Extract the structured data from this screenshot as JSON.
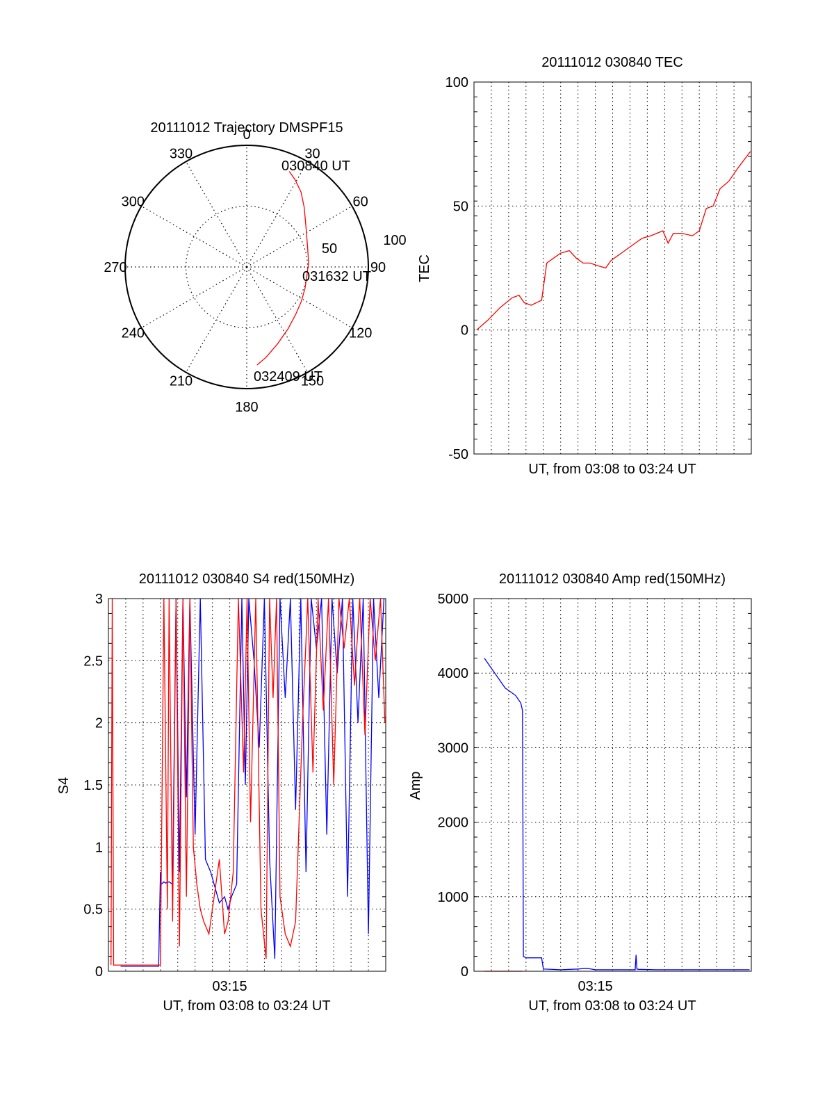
{
  "chart_data": [
    {
      "type": "polar",
      "title": "20111012 Trajectory DMSPF15",
      "azimuth_labels": [
        "0",
        "30",
        "60",
        "90",
        "120",
        "150",
        "180",
        "210",
        "240",
        "270",
        "300",
        "330"
      ],
      "radial_labels": [
        "50",
        "100"
      ],
      "r_max": 100,
      "series": [
        {
          "color": "#ff0000",
          "points": [
            [
              24,
              86
            ],
            [
              29,
              82
            ],
            [
              36,
              76
            ],
            [
              44,
              68
            ],
            [
              54,
              60
            ],
            [
              64,
              55
            ],
            [
              75,
              52
            ],
            [
              86,
              51
            ],
            [
              98,
              50
            ],
            [
              110,
              51
            ],
            [
              122,
              53
            ],
            [
              134,
              56
            ],
            [
              146,
              61
            ],
            [
              158,
              68
            ],
            [
              168,
              76
            ],
            [
              174,
              81
            ]
          ]
        }
      ],
      "annotations": [
        {
          "text": "030840 UT"
        },
        {
          "text": "031632 UT"
        },
        {
          "text": "032409 UT"
        }
      ]
    },
    {
      "type": "line",
      "title": "20111012 030840 TEC",
      "xlabel": "UT, from 03:08 to 03:24 UT",
      "ylabel": "TEC",
      "xlim": [
        0,
        16
      ],
      "ylim": [
        -50,
        100
      ],
      "yticks": [
        -50,
        0,
        50,
        100
      ],
      "xtick_labels": [],
      "grid": true,
      "series": [
        {
          "color": "#ff0000",
          "x": [
            0.15,
            0.8,
            1.5,
            2.2,
            2.6,
            2.9,
            3.3,
            3.6,
            3.9,
            4.2,
            4.6,
            5.0,
            5.5,
            5.9,
            6.3,
            6.7,
            7.1,
            7.6,
            7.9,
            8.5,
            9.1,
            9.7,
            10.2,
            10.9,
            11.2,
            11.5,
            12.0,
            12.6,
            13.0,
            13.4,
            13.8,
            14.2,
            14.7,
            15.3,
            15.95
          ],
          "y": [
            0,
            4,
            9,
            13,
            14,
            11,
            10,
            11,
            12,
            27,
            29,
            31,
            32,
            29,
            27,
            27,
            26,
            25,
            28,
            31,
            34,
            37,
            38,
            40,
            35,
            39,
            39,
            38,
            40,
            49,
            50,
            57,
            60,
            66,
            72
          ]
        }
      ]
    },
    {
      "type": "line",
      "title": "20111012 030840 S4 red(150MHz)",
      "xlabel": "UT, from 03:08 to 03:24 UT",
      "ylabel": "S4",
      "xlim": [
        0,
        16
      ],
      "ylim": [
        0,
        3
      ],
      "yticks": [
        "0",
        "0.5",
        "1",
        "1.5",
        "2",
        "2.5",
        "3"
      ],
      "xtick_labels": [
        "03:15"
      ],
      "grid": true,
      "series": [
        {
          "color": "#0000ff",
          "x": [
            0.7,
            1.5,
            2.2,
            2.9,
            3.0,
            3.05,
            3.2,
            3.3,
            3.5,
            3.7,
            3.9,
            4.1,
            4.3,
            4.5,
            4.7,
            5.0,
            5.3,
            5.6,
            5.9,
            6.1,
            6.4,
            6.7,
            6.9,
            7.1,
            7.4,
            7.7,
            7.9,
            8.1,
            8.4,
            8.7,
            9.0,
            9.3,
            9.6,
            9.9,
            10.2,
            10.5,
            10.8,
            11.1,
            11.4,
            11.7,
            12.0,
            12.3,
            12.6,
            12.9,
            13.2,
            13.5,
            13.8,
            14.1,
            14.4,
            14.7,
            15.0,
            15.3,
            15.6,
            15.9
          ],
          "y": [
            0.04,
            0.04,
            0.04,
            0.04,
            0.8,
            0.7,
            0.72,
            0.71,
            0.72,
            0.7,
            3,
            0.8,
            3,
            1.4,
            3,
            1.1,
            3,
            0.9,
            0.8,
            0.7,
            0.55,
            0.6,
            0.5,
            0.6,
            0.7,
            3,
            1.5,
            3,
            2.5,
            1.8,
            3,
            0.9,
            0.1,
            3,
            2.2,
            3,
            1.3,
            3,
            0.8,
            3,
            2.6,
            3,
            1.1,
            3,
            2.4,
            3,
            0.6,
            3,
            2.0,
            3,
            0.3,
            3,
            2.2,
            3
          ]
        },
        {
          "color": "#ff0000",
          "x": [
            0.15,
            0.22,
            0.3,
            1.0,
            2.0,
            3.0,
            3.2,
            3.4,
            3.5,
            3.7,
            3.9,
            4.1,
            4.3,
            4.5,
            4.7,
            4.9,
            5.1,
            5.3,
            5.5,
            5.8,
            6.1,
            6.4,
            6.7,
            6.9,
            7.2,
            7.5,
            7.8,
            8.0,
            8.2,
            8.5,
            8.8,
            9.1,
            9.3,
            9.5,
            9.7,
            9.9,
            10.2,
            10.5,
            10.8,
            11.0,
            11.2,
            11.5,
            11.8,
            12.1,
            12.4,
            12.7,
            13.0,
            13.3,
            13.6,
            13.9,
            14.2,
            14.5,
            14.8,
            15.1,
            15.4,
            15.7,
            15.95
          ],
          "y": [
            0.05,
            3,
            0.05,
            0.05,
            0.05,
            0.05,
            3,
            0.5,
            3,
            0.4,
            3,
            0.2,
            3,
            0.6,
            3,
            1.0,
            0.7,
            0.5,
            0.4,
            0.3,
            0.6,
            0.9,
            0.3,
            0.4,
            0.8,
            3,
            1.6,
            3,
            1.2,
            3,
            0.5,
            0.1,
            3,
            2.2,
            3,
            0.6,
            0.3,
            0.2,
            0.4,
            1.2,
            2.0,
            3,
            1.6,
            3,
            2.1,
            3,
            1.5,
            3,
            2.6,
            3,
            2.3,
            3,
            1.9,
            3,
            2.5,
            3,
            2.0
          ]
        }
      ]
    },
    {
      "type": "line",
      "title": "20111012 030840 Amp red(150MHz)",
      "xlabel": "UT, from 03:08 to 03:24 UT",
      "ylabel": "Amp",
      "xlim": [
        0,
        16
      ],
      "ylim": [
        0,
        5000
      ],
      "yticks": [
        0,
        1000,
        2000,
        3000,
        4000,
        5000
      ],
      "xtick_labels": [
        "03:15"
      ],
      "grid": true,
      "series": [
        {
          "color": "#ff0000",
          "x": [
            0.6,
            2.8
          ],
          "y": [
            0,
            0
          ]
        },
        {
          "color": "#0000ff",
          "x": [
            0.6,
            0.9,
            1.2,
            1.5,
            1.8,
            2.1,
            2.4,
            2.7,
            2.8,
            2.85,
            3.0,
            3.9,
            4.0,
            5.0,
            6.0,
            6.5,
            7.0,
            8.0,
            9.0,
            9.3,
            9.35,
            9.4,
            9.5,
            10.5,
            12.0,
            14.0,
            15.9
          ],
          "y": [
            4200,
            4100,
            4000,
            3900,
            3800,
            3750,
            3700,
            3600,
            3500,
            200,
            180,
            180,
            30,
            20,
            30,
            40,
            20,
            20,
            20,
            20,
            220,
            30,
            25,
            20,
            20,
            20,
            20
          ]
        }
      ]
    }
  ],
  "colors": {
    "trajectory": "#ff0000",
    "tec": "#ff0000",
    "s4_red": "#ff0000",
    "s4_blue": "#0000ff",
    "amp_red": "#ff0000",
    "amp_blue": "#0000ff"
  }
}
